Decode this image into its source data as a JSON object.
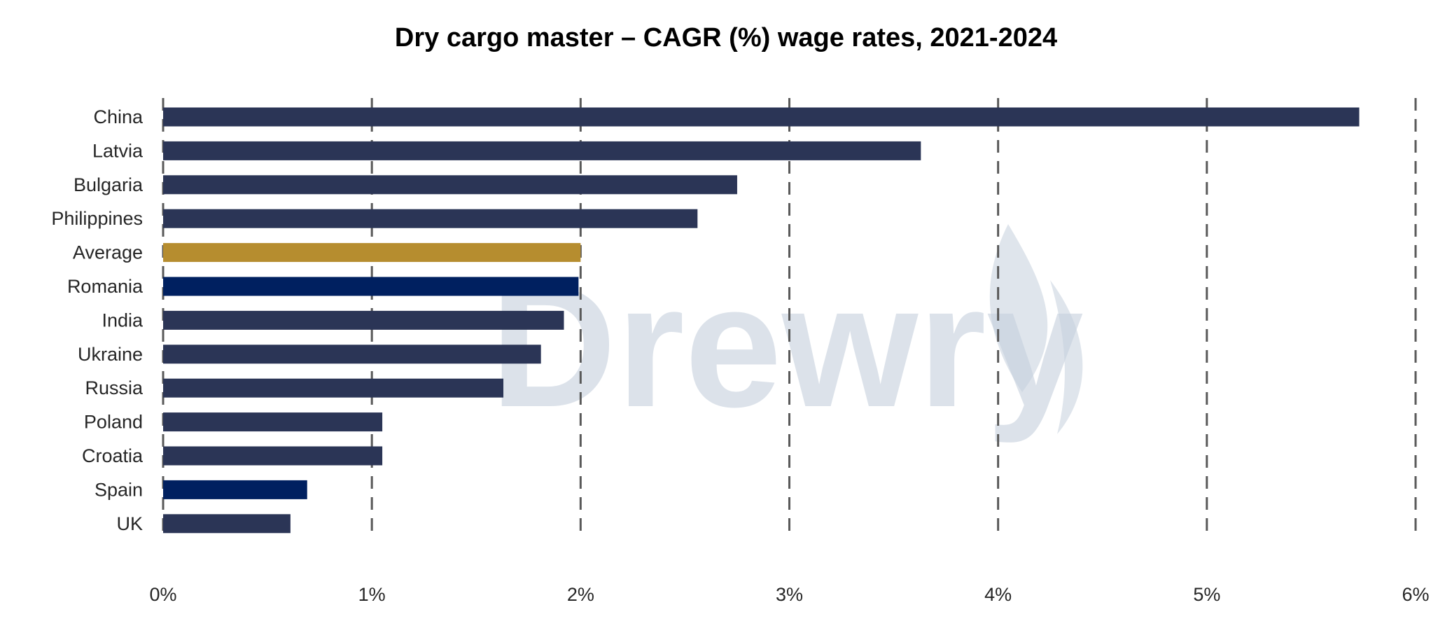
{
  "chart_data": {
    "type": "bar",
    "orientation": "horizontal",
    "title": "Dry cargo master – CAGR (%) wage rates, 2021-2024",
    "xlabel": "",
    "ylabel": "",
    "xlim": [
      0,
      6
    ],
    "x_ticks": [
      0,
      1,
      2,
      3,
      4,
      5,
      6
    ],
    "x_tick_labels": [
      "0%",
      "1%",
      "2%",
      "3%",
      "4%",
      "5%",
      "6%"
    ],
    "grid": "vertical dashed",
    "legend": "none",
    "categories": [
      "China",
      "Latvia",
      "Bulgaria",
      "Philippines",
      "Average",
      "Romania",
      "India",
      "Ukraine",
      "Russia",
      "Poland",
      "Croatia",
      "Spain",
      "UK"
    ],
    "values": [
      5.73,
      3.63,
      2.75,
      2.56,
      2.0,
      1.99,
      1.92,
      1.81,
      1.63,
      1.05,
      1.05,
      0.69,
      0.61
    ],
    "bar_colors": [
      "#2b3556",
      "#2b3556",
      "#2b3556",
      "#2b3556",
      "#b68d2f",
      "#002060",
      "#2b3556",
      "#2b3556",
      "#2b3556",
      "#2b3556",
      "#2b3556",
      "#002060",
      "#2b3556"
    ],
    "watermark": "Drewry"
  }
}
